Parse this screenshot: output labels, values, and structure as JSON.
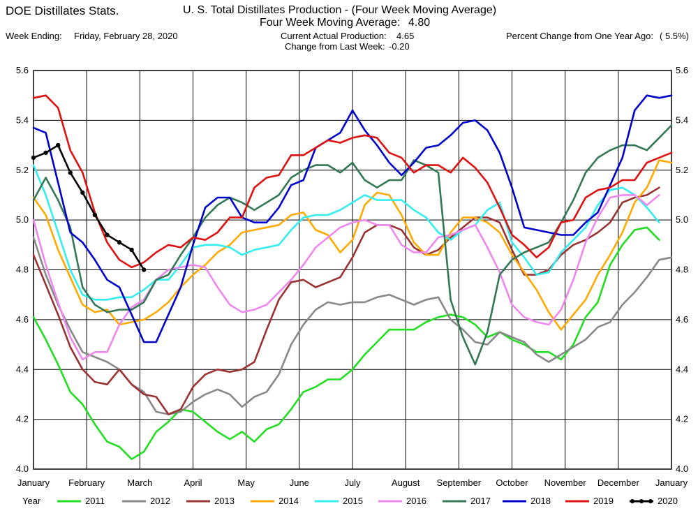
{
  "header": {
    "app_title": "DOE Distillates Stats.",
    "chart_title": "U. S. Total Distillates Production - (Four Week Moving Average)",
    "avg_label": "Four Week Moving Average:",
    "avg_value": "4.80",
    "week_ending_label": "Week Ending:",
    "week_ending_value": "Friday, February 28, 2020",
    "current_label": "Current Actual Production:",
    "current_value": "4.65",
    "change_label": "Change from Last Week:",
    "change_value": "-0.20",
    "pct_label": "Percent Change from One Year Ago:",
    "pct_value": "( 5.5%)"
  },
  "legend": {
    "title": "Year"
  },
  "chart_data": {
    "type": "line",
    "title": "U. S. Total Distillates Production - (Four Week Moving Average)",
    "xlabel": "",
    "ylabel": "",
    "x_unit": "week of year",
    "xlim": [
      1,
      53
    ],
    "ylim": [
      4.0,
      5.6
    ],
    "y_ticks": [
      "4.0",
      "4.2",
      "4.4",
      "4.6",
      "4.8",
      "5.0",
      "5.2",
      "5.4",
      "5.6"
    ],
    "x_tick_labels": [
      "January",
      "February",
      "March",
      "April",
      "May",
      "June",
      "July",
      "August",
      "September",
      "October",
      "November",
      "December",
      "January"
    ],
    "grid": true,
    "legend_position": "bottom",
    "series": [
      {
        "name": "2011",
        "color": "#22dd22",
        "markers": false,
        "values": [
          4.61,
          4.52,
          4.42,
          4.31,
          4.26,
          4.18,
          4.11,
          4.09,
          4.04,
          4.07,
          4.15,
          4.19,
          4.24,
          4.23,
          4.19,
          4.15,
          4.12,
          4.15,
          4.11,
          4.16,
          4.18,
          4.24,
          4.31,
          4.33,
          4.36,
          4.36,
          4.4,
          4.46,
          4.51,
          4.56,
          4.56,
          4.56,
          4.59,
          4.61,
          4.62,
          4.61,
          4.58,
          4.53,
          4.55,
          4.52,
          4.5,
          4.47,
          4.47,
          4.44,
          4.5,
          4.61,
          4.67,
          4.82,
          4.9,
          4.96,
          4.97,
          4.92
        ]
      },
      {
        "name": "2012",
        "color": "#888888",
        "markers": false,
        "values": [
          4.93,
          4.78,
          4.66,
          4.56,
          4.47,
          4.45,
          4.43,
          4.4,
          4.34,
          4.31,
          4.23,
          4.22,
          4.23,
          4.27,
          4.3,
          4.32,
          4.3,
          4.25,
          4.29,
          4.31,
          4.38,
          4.5,
          4.58,
          4.64,
          4.67,
          4.66,
          4.67,
          4.67,
          4.69,
          4.7,
          4.68,
          4.66,
          4.68,
          4.69,
          4.6,
          4.56,
          4.51,
          4.5,
          4.55,
          4.53,
          4.51,
          4.46,
          4.43,
          4.46,
          4.49,
          4.52,
          4.57,
          4.59,
          4.66,
          4.71,
          4.77,
          4.84,
          4.85
        ]
      },
      {
        "name": "2013",
        "color": "#993333",
        "markers": false,
        "values": [
          4.86,
          4.74,
          4.62,
          4.49,
          4.4,
          4.35,
          4.34,
          4.4,
          4.34,
          4.3,
          4.29,
          4.22,
          4.24,
          4.33,
          4.38,
          4.4,
          4.39,
          4.4,
          4.43,
          4.56,
          4.68,
          4.75,
          4.76,
          4.73,
          4.75,
          4.77,
          4.85,
          4.95,
          4.98,
          4.98,
          4.96,
          4.89,
          4.86,
          4.88,
          4.93,
          4.97,
          5.01,
          5.01,
          4.99,
          4.88,
          4.78,
          4.78,
          4.8,
          4.86,
          4.9,
          4.92,
          4.95,
          4.99,
          5.07,
          5.09,
          5.1,
          5.13
        ]
      },
      {
        "name": "2014",
        "color": "#ffaa00",
        "markers": false,
        "values": [
          5.09,
          5.02,
          4.88,
          4.77,
          4.66,
          4.63,
          4.64,
          4.58,
          4.59,
          4.6,
          4.63,
          4.67,
          4.73,
          4.78,
          4.82,
          4.87,
          4.9,
          4.95,
          4.96,
          4.97,
          4.98,
          5.02,
          5.03,
          4.96,
          4.94,
          4.87,
          4.92,
          5.06,
          5.11,
          5.1,
          5.02,
          4.91,
          4.86,
          4.86,
          4.95,
          5.01,
          5.01,
          4.99,
          4.95,
          4.86,
          4.79,
          4.72,
          4.63,
          4.56,
          4.62,
          4.68,
          4.78,
          4.86,
          4.95,
          5.07,
          5.13,
          5.24,
          5.23
        ]
      },
      {
        "name": "2015",
        "color": "#33eeee",
        "markers": false,
        "values": [
          5.22,
          5.1,
          4.95,
          4.8,
          4.7,
          4.68,
          4.68,
          4.69,
          4.69,
          4.72,
          4.76,
          4.76,
          4.82,
          4.89,
          4.9,
          4.9,
          4.89,
          4.86,
          4.88,
          4.89,
          4.9,
          4.96,
          5.01,
          5.02,
          5.02,
          5.04,
          5.07,
          5.1,
          5.08,
          5.08,
          5.08,
          5.04,
          5.01,
          4.95,
          4.92,
          4.96,
          4.98,
          5.04,
          5.07,
          4.91,
          4.85,
          4.78,
          4.79,
          4.87,
          4.92,
          4.97,
          5.06,
          5.12,
          5.13,
          5.1,
          5.05,
          4.99
        ]
      },
      {
        "name": "2016",
        "color": "#ee88ee",
        "markers": false,
        "values": [
          5.0,
          4.82,
          4.67,
          4.53,
          4.44,
          4.47,
          4.47,
          4.58,
          4.65,
          4.68,
          4.76,
          4.8,
          4.81,
          4.82,
          4.81,
          4.73,
          4.66,
          4.63,
          4.64,
          4.66,
          4.71,
          4.76,
          4.82,
          4.89,
          4.93,
          4.97,
          4.99,
          5.0,
          4.98,
          4.98,
          4.9,
          4.87,
          4.87,
          4.93,
          4.94,
          4.96,
          4.98,
          4.89,
          4.79,
          4.66,
          4.61,
          4.59,
          4.58,
          4.64,
          4.76,
          4.91,
          5.01,
          5.09,
          5.1,
          5.1,
          5.06,
          5.1
        ]
      },
      {
        "name": "2017",
        "color": "#337755",
        "markers": false,
        "values": [
          5.08,
          5.17,
          5.08,
          4.97,
          4.73,
          4.66,
          4.63,
          4.64,
          4.64,
          4.67,
          4.76,
          4.78,
          4.86,
          4.93,
          5.01,
          5.06,
          5.09,
          5.07,
          5.04,
          5.07,
          5.1,
          5.17,
          5.2,
          5.22,
          5.22,
          5.19,
          5.23,
          5.16,
          5.13,
          5.16,
          5.16,
          5.24,
          5.22,
          5.19,
          4.68,
          4.53,
          4.42,
          4.55,
          4.78,
          4.84,
          4.87,
          4.89,
          4.91,
          4.99,
          5.08,
          5.19,
          5.25,
          5.28,
          5.3,
          5.3,
          5.28,
          5.33,
          5.38
        ]
      },
      {
        "name": "2018",
        "color": "#0000cc",
        "markers": false,
        "values": [
          5.37,
          5.35,
          5.15,
          4.95,
          4.91,
          4.84,
          4.76,
          4.73,
          4.62,
          4.51,
          4.51,
          4.62,
          4.73,
          4.9,
          5.05,
          5.09,
          5.09,
          5.01,
          4.99,
          4.99,
          5.05,
          5.14,
          5.16,
          5.29,
          5.32,
          5.35,
          5.44,
          5.36,
          5.3,
          5.23,
          5.18,
          5.23,
          5.29,
          5.3,
          5.34,
          5.39,
          5.4,
          5.36,
          5.27,
          5.13,
          4.97,
          4.96,
          4.95,
          4.94,
          4.94,
          4.99,
          5.03,
          5.14,
          5.25,
          5.44,
          5.5,
          5.49,
          5.5
        ]
      },
      {
        "name": "2019",
        "color": "#dd1111",
        "markers": false,
        "values": [
          5.49,
          5.5,
          5.45,
          5.28,
          5.19,
          5.03,
          4.91,
          4.84,
          4.81,
          4.83,
          4.87,
          4.9,
          4.89,
          4.93,
          4.92,
          4.95,
          5.01,
          5.01,
          5.13,
          5.17,
          5.18,
          5.26,
          5.26,
          5.29,
          5.32,
          5.31,
          5.33,
          5.34,
          5.33,
          5.27,
          5.25,
          5.19,
          5.22,
          5.22,
          5.19,
          5.25,
          5.21,
          5.15,
          5.05,
          4.94,
          4.9,
          4.85,
          4.89,
          4.99,
          5.0,
          5.09,
          5.12,
          5.13,
          5.16,
          5.16,
          5.23,
          5.25,
          5.27
        ]
      },
      {
        "name": "2020",
        "color": "#000000",
        "markers": true,
        "values": [
          5.25,
          5.27,
          5.3,
          5.19,
          5.11,
          5.02,
          4.94,
          4.91,
          4.88,
          4.8
        ]
      }
    ]
  }
}
